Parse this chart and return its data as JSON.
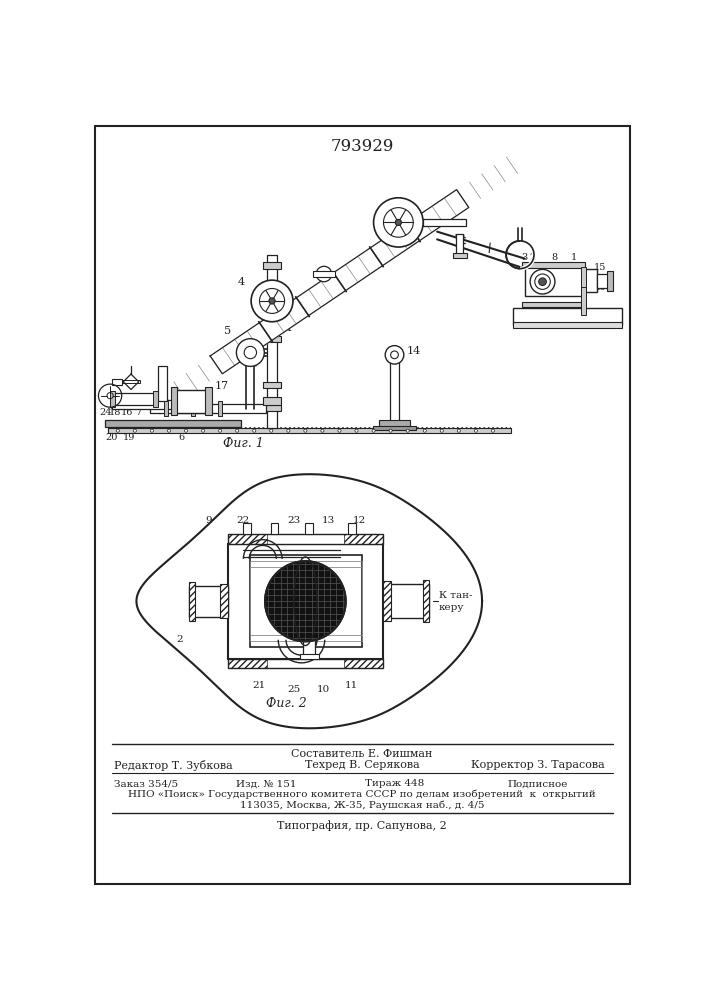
{
  "patent_number": "793929",
  "fig1_caption": "Фиг. 1",
  "fig2_caption": "Фиг. 2",
  "footer_composer": "Составитель Е. Фишман",
  "footer_editor": "Редактор Т. Зубкова",
  "footer_tech": "Техред В. Серякова",
  "footer_corrector": "Корректор З. Тарасова",
  "footer_order": "Заказ 354/5",
  "footer_issue": "Изд. № 151",
  "footer_print": "Тираж 448",
  "footer_sub": "Подписное",
  "footer_npo": "НПО «Поиск» Государственного комитета СССР по делам изобретений  к  открытий",
  "footer_addr": "113035, Москва, Ж-35, Раушская наб., д. 4/5",
  "footer_typo": "Типография, пр. Сапунова, 2",
  "bg_color": "#ffffff",
  "line_color": "#222222"
}
